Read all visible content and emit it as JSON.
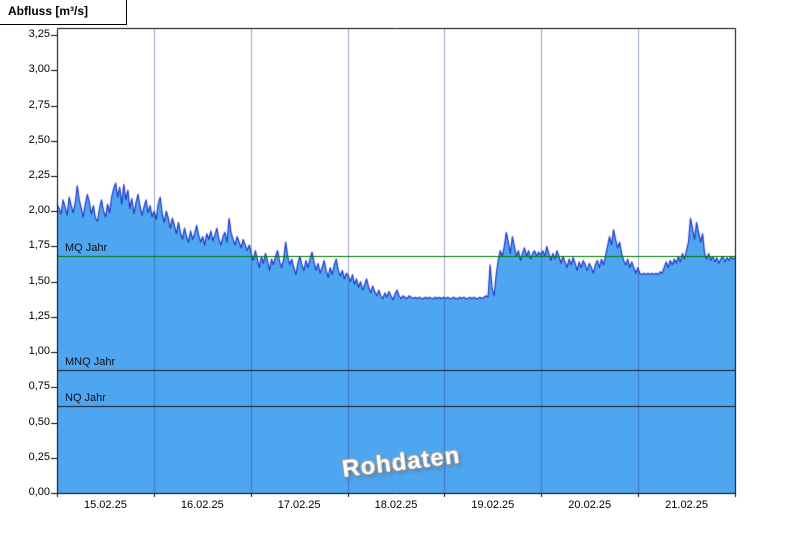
{
  "chart_data": {
    "type": "area",
    "title": "Abfluss [m³/s]",
    "ylabel": "Abfluss [m³/s]",
    "xlabel": "",
    "watermark": "Rohdaten",
    "grid": "vertical-day-lines",
    "legend": "none",
    "ylim": [
      0,
      3.3
    ],
    "y_ticks": [
      0.0,
      0.25,
      0.5,
      0.75,
      1.0,
      1.25,
      1.5,
      1.75,
      2.0,
      2.25,
      2.5,
      2.75,
      3.0,
      3.25
    ],
    "x_tick_labels": [
      "15.02.25",
      "16.02.25",
      "17.02.25",
      "18.02.25",
      "19.02.25",
      "20.02.25",
      "21.02.25"
    ],
    "days": 7,
    "points_per_day": 48,
    "reference_lines": [
      {
        "label": "MQ Jahr",
        "value": 1.68,
        "color": "#007A00"
      },
      {
        "label": "MNQ Jahr",
        "value": 0.87,
        "color": "#1a1a1a"
      },
      {
        "label": "NQ Jahr",
        "value": 0.62,
        "color": "#1a1a1a"
      }
    ],
    "colors": {
      "fill": "#4FA6F0",
      "line": "#2038C8",
      "grid": "rgba(45,75,150,0.5)",
      "axis": "#000000"
    },
    "values": [
      2.05,
      2.02,
      1.98,
      2.08,
      2.03,
      1.97,
      2.1,
      2.04,
      1.99,
      2.06,
      2.18,
      2.08,
      2.02,
      1.96,
      2.05,
      2.12,
      2.06,
      1.98,
      2.04,
      1.95,
      1.93,
      2.02,
      2.08,
      2.0,
      1.96,
      2.05,
      1.99,
      2.1,
      2.16,
      2.2,
      2.1,
      2.17,
      2.05,
      2.19,
      2.08,
      2.15,
      2.02,
      2.09,
      1.98,
      2.06,
      2.12,
      2.04,
      1.97,
      2.03,
      2.08,
      1.99,
      2.04,
      1.96,
      2.0,
      1.94,
      2.05,
      2.1,
      1.98,
      1.92,
      2.0,
      1.95,
      1.88,
      1.95,
      1.9,
      1.84,
      1.92,
      1.85,
      1.8,
      1.88,
      1.82,
      1.78,
      1.86,
      1.8,
      1.84,
      1.9,
      1.83,
      1.78,
      1.82,
      1.76,
      1.84,
      1.8,
      1.86,
      1.79,
      1.83,
      1.88,
      1.8,
      1.76,
      1.82,
      1.85,
      1.78,
      1.95,
      1.85,
      1.8,
      1.76,
      1.82,
      1.78,
      1.74,
      1.8,
      1.76,
      1.72,
      1.76,
      1.7,
      1.65,
      1.72,
      1.66,
      1.6,
      1.68,
      1.63,
      1.7,
      1.65,
      1.58,
      1.66,
      1.62,
      1.68,
      1.72,
      1.64,
      1.6,
      1.66,
      1.78,
      1.68,
      1.62,
      1.66,
      1.6,
      1.55,
      1.63,
      1.68,
      1.62,
      1.58,
      1.65,
      1.6,
      1.66,
      1.71,
      1.64,
      1.58,
      1.63,
      1.56,
      1.6,
      1.65,
      1.58,
      1.53,
      1.6,
      1.55,
      1.62,
      1.66,
      1.58,
      1.54,
      1.58,
      1.52,
      1.56,
      1.54,
      1.5,
      1.55,
      1.48,
      1.52,
      1.46,
      1.5,
      1.44,
      1.48,
      1.52,
      1.46,
      1.42,
      1.47,
      1.43,
      1.4,
      1.44,
      1.4,
      1.38,
      1.42,
      1.39,
      1.43,
      1.4,
      1.37,
      1.41,
      1.44,
      1.4,
      1.38,
      1.4,
      1.39,
      1.38,
      1.4,
      1.39,
      1.38,
      1.39,
      1.38,
      1.39,
      1.38,
      1.38,
      1.39,
      1.38,
      1.39,
      1.38,
      1.38,
      1.39,
      1.38,
      1.39,
      1.38,
      1.39,
      1.38,
      1.39,
      1.38,
      1.38,
      1.39,
      1.38,
      1.38,
      1.39,
      1.38,
      1.39,
      1.38,
      1.38,
      1.39,
      1.38,
      1.39,
      1.38,
      1.38,
      1.39,
      1.38,
      1.39,
      1.4,
      1.39,
      1.62,
      1.45,
      1.4,
      1.55,
      1.65,
      1.72,
      1.68,
      1.75,
      1.85,
      1.78,
      1.7,
      1.82,
      1.75,
      1.68,
      1.72,
      1.65,
      1.7,
      1.74,
      1.68,
      1.72,
      1.66,
      1.7,
      1.72,
      1.68,
      1.71,
      1.69,
      1.72,
      1.68,
      1.75,
      1.7,
      1.65,
      1.7,
      1.66,
      1.72,
      1.68,
      1.63,
      1.68,
      1.64,
      1.6,
      1.66,
      1.62,
      1.67,
      1.63,
      1.58,
      1.64,
      1.6,
      1.65,
      1.62,
      1.58,
      1.63,
      1.6,
      1.56,
      1.62,
      1.65,
      1.6,
      1.66,
      1.62,
      1.68,
      1.75,
      1.82,
      1.76,
      1.87,
      1.8,
      1.74,
      1.78,
      1.7,
      1.65,
      1.62,
      1.66,
      1.6,
      1.64,
      1.6,
      1.56,
      1.6,
      1.56,
      1.55,
      1.56,
      1.55,
      1.56,
      1.55,
      1.56,
      1.55,
      1.56,
      1.55,
      1.57,
      1.56,
      1.6,
      1.64,
      1.6,
      1.65,
      1.62,
      1.66,
      1.63,
      1.68,
      1.64,
      1.7,
      1.66,
      1.72,
      1.78,
      1.95,
      1.88,
      1.8,
      1.92,
      1.85,
      1.78,
      1.84,
      1.7,
      1.66,
      1.7,
      1.65,
      1.68,
      1.64,
      1.67,
      1.63,
      1.66,
      1.68,
      1.64,
      1.67,
      1.65,
      1.68,
      1.66,
      1.67
    ]
  }
}
